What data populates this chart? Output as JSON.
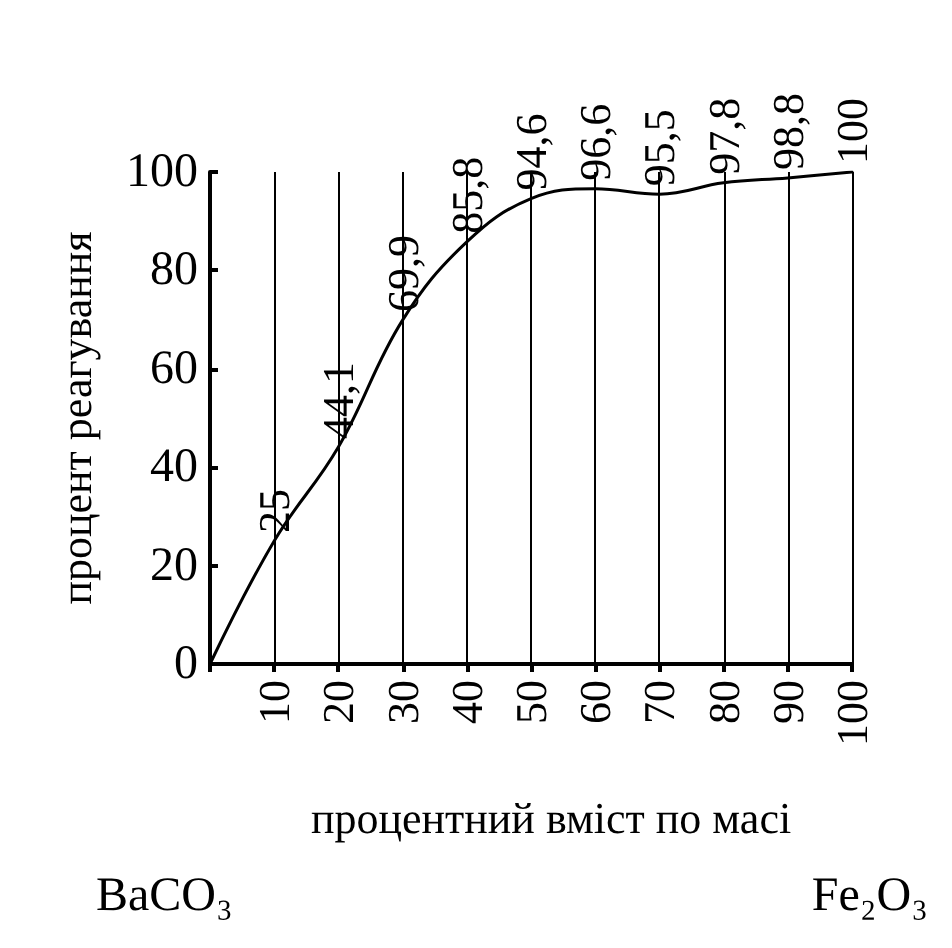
{
  "chart_data": {
    "type": "line",
    "xlabel": "процентний вміст по масі",
    "ylabel": "процент реагування",
    "x": [
      0,
      10,
      20,
      30,
      40,
      50,
      60,
      70,
      80,
      90,
      100
    ],
    "values": [
      0,
      25,
      44.1,
      69.9,
      85.8,
      94.6,
      96.6,
      95.5,
      97.8,
      98.8,
      100
    ],
    "value_labels": [
      null,
      "25",
      "44,1",
      "69,9",
      "85,8",
      "94,6",
      "96,6",
      "95,5",
      "97,8",
      "98,8",
      "100"
    ],
    "color": "#000000",
    "marker": "none",
    "line_style": "solid",
    "xlim": [
      0,
      100
    ],
    "xticks": [
      {
        "value": 0,
        "label": null
      },
      10,
      20,
      30,
      40,
      50,
      60,
      70,
      80,
      90,
      100
    ],
    "ylim": [
      0,
      100
    ],
    "yticks": [
      0,
      20,
      40,
      60,
      80,
      100
    ],
    "grid": "x",
    "annotations": [
      "BaCO₃",
      "Fe₂O₃"
    ]
  }
}
